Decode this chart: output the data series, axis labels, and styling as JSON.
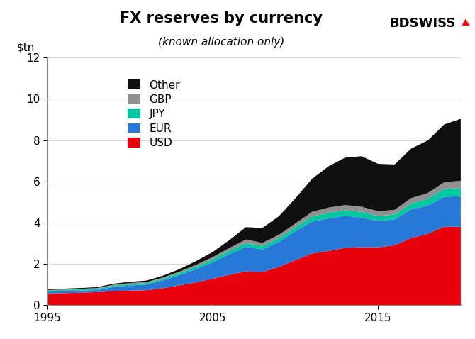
{
  "title": "FX reserves by currency",
  "subtitle": "(known allocation only)",
  "ylabel": "$tn",
  "colors": {
    "USD": "#e8000d",
    "EUR": "#2878d8",
    "JPY": "#00c8a0",
    "GBP": "#909090",
    "Other": "#101010"
  },
  "legend_order": [
    "Other",
    "GBP",
    "JPY",
    "EUR",
    "USD"
  ],
  "ylim": [
    0,
    12
  ],
  "xticks": [
    1995,
    2005,
    2015
  ],
  "yticks": [
    0,
    2,
    4,
    6,
    8,
    10,
    12
  ],
  "years": [
    1995,
    1996,
    1997,
    1998,
    1999,
    2000,
    2001,
    2002,
    2003,
    2004,
    2005,
    2006,
    2007,
    2008,
    2009,
    2010,
    2011,
    2012,
    2013,
    2014,
    2015,
    2016,
    2017,
    2018,
    2019,
    2020
  ],
  "USD": [
    0.56,
    0.58,
    0.6,
    0.63,
    0.68,
    0.7,
    0.72,
    0.82,
    0.96,
    1.1,
    1.28,
    1.47,
    1.63,
    1.6,
    1.85,
    2.18,
    2.5,
    2.62,
    2.78,
    2.8,
    2.8,
    2.9,
    3.25,
    3.45,
    3.8,
    3.8
  ],
  "EUR": [
    0.09,
    0.1,
    0.1,
    0.1,
    0.2,
    0.25,
    0.28,
    0.38,
    0.5,
    0.65,
    0.8,
    1.0,
    1.2,
    1.1,
    1.22,
    1.4,
    1.55,
    1.58,
    1.55,
    1.45,
    1.28,
    1.25,
    1.4,
    1.38,
    1.45,
    1.48
  ],
  "JPY": [
    0.05,
    0.05,
    0.06,
    0.06,
    0.06,
    0.07,
    0.07,
    0.08,
    0.1,
    0.12,
    0.14,
    0.16,
    0.18,
    0.17,
    0.18,
    0.2,
    0.25,
    0.28,
    0.27,
    0.27,
    0.24,
    0.24,
    0.28,
    0.32,
    0.38,
    0.4
  ],
  "GBP": [
    0.03,
    0.03,
    0.03,
    0.04,
    0.05,
    0.05,
    0.05,
    0.06,
    0.07,
    0.09,
    0.11,
    0.14,
    0.17,
    0.15,
    0.16,
    0.18,
    0.22,
    0.25,
    0.25,
    0.25,
    0.23,
    0.23,
    0.26,
    0.28,
    0.33,
    0.35
  ],
  "Other": [
    0.03,
    0.04,
    0.04,
    0.04,
    0.05,
    0.06,
    0.07,
    0.09,
    0.12,
    0.18,
    0.25,
    0.38,
    0.6,
    0.72,
    0.9,
    1.22,
    1.6,
    2.0,
    2.3,
    2.45,
    2.3,
    2.2,
    2.4,
    2.55,
    2.8,
    3.0
  ],
  "title_fontsize": 15,
  "subtitle_fontsize": 11,
  "tick_fontsize": 11,
  "legend_fontsize": 11
}
